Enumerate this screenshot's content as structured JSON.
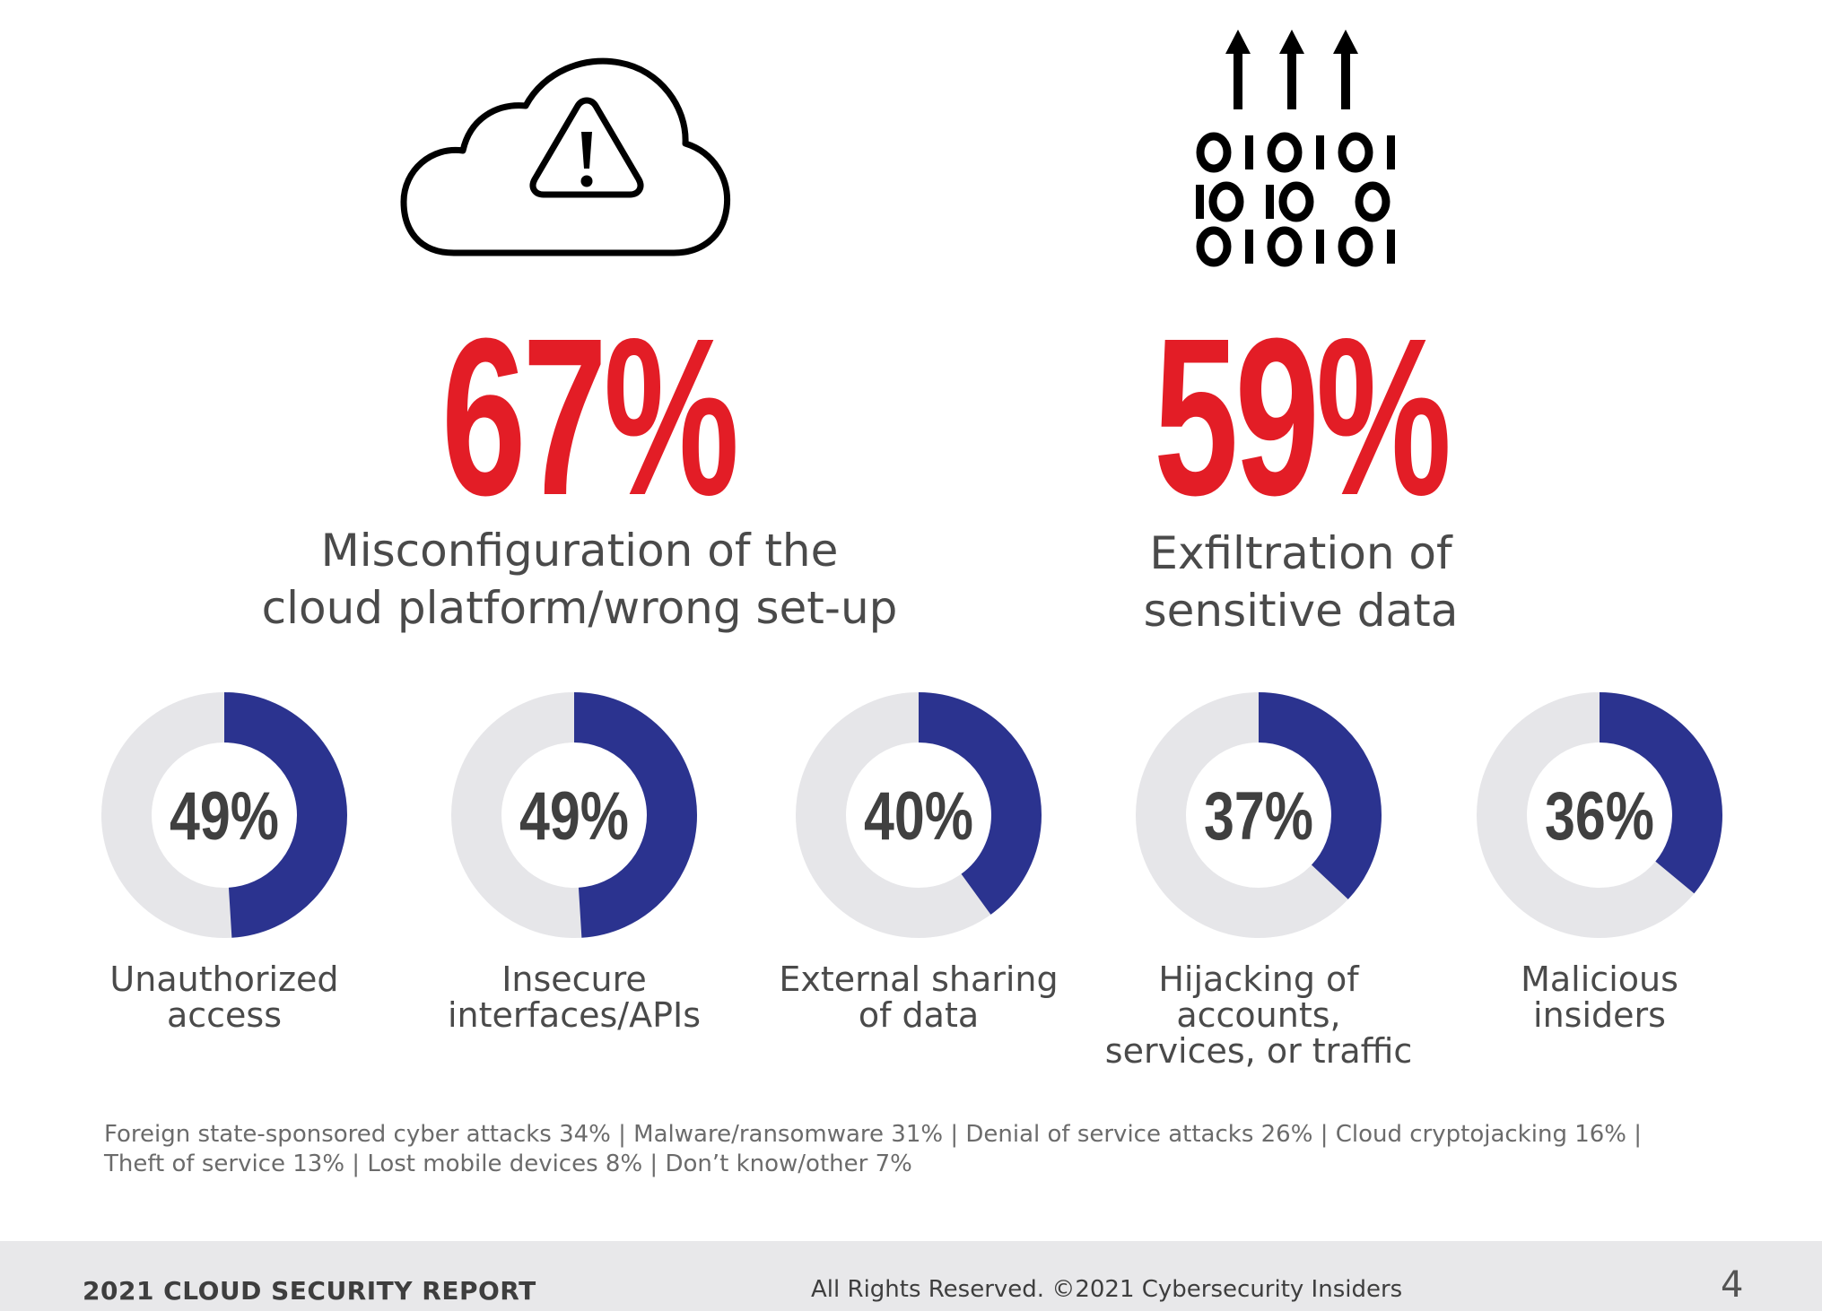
{
  "icons": {
    "left": "cloud-warning-icon",
    "right": "binary-upload-icon"
  },
  "colors": {
    "accent_red": "#e31d26",
    "donut_fill": "#2b338f",
    "donut_track": "#e6e6e9",
    "text_gray": "#4a4a4a"
  },
  "highlights": [
    {
      "value": "67%",
      "label_line1": "Misconfiguration of the",
      "label_line2": "cloud platform/wrong set-up"
    },
    {
      "value": "59%",
      "label_line1": "Exfiltration of",
      "label_line2": "sensitive data"
    }
  ],
  "chart_data": {
    "type": "donut",
    "categories": [
      "Unauthorized access",
      "Insecure interfaces/APIs",
      "External sharing of data",
      "Hijacking of accounts, services, or traffic",
      "Malicious insiders"
    ],
    "values": [
      49,
      49,
      40,
      37,
      36
    ],
    "value_labels": [
      "49%",
      "49%",
      "40%",
      "37%",
      "36%"
    ],
    "label_lines": [
      [
        "Unauthorized",
        "access"
      ],
      [
        "Insecure",
        "interfaces/APIs"
      ],
      [
        "External sharing",
        "of data"
      ],
      [
        "Hijacking of",
        "accounts,",
        "services, or traffic"
      ],
      [
        "Malicious",
        "insiders"
      ]
    ],
    "unit": "%"
  },
  "other_responses": {
    "line1": "Foreign state-sponsored cyber attacks 34%  |  Malware/ransomware 31%  |  Denial of service attacks 26%  | Cloud cryptojacking 16%  |",
    "line2": "Theft of service 13%  |  Lost mobile devices  8%  |  Don’t know/other 7%"
  },
  "footer": {
    "report_title": "2021 CLOUD SECURITY REPORT",
    "copyright": "All Rights Reserved.  ©2021  Cybersecurity Insiders",
    "page_number": "4"
  }
}
